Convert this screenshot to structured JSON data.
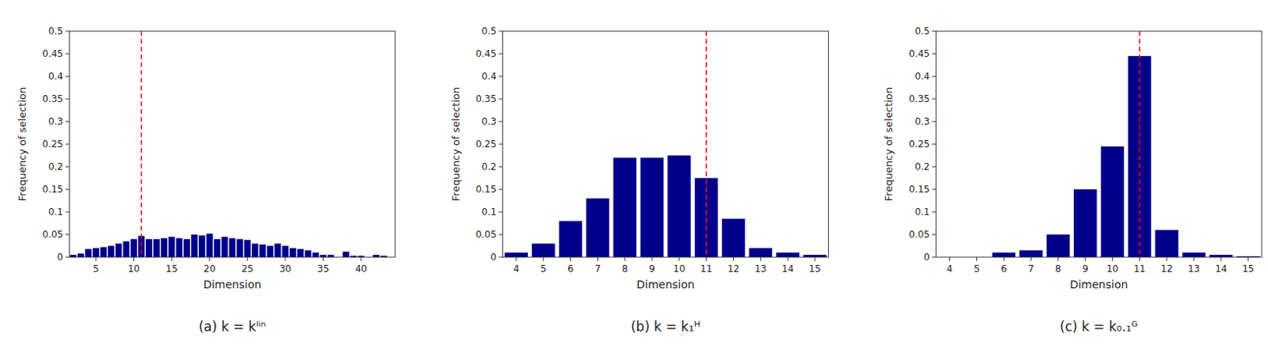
{
  "chart_data": [
    {
      "type": "bar",
      "title": "(a)  k = kˡⁱⁿ",
      "xlabel": "Dimension",
      "ylabel": "Frequency of selection",
      "color": "#00008B",
      "x": [
        2,
        3,
        4,
        5,
        6,
        7,
        8,
        9,
        10,
        11,
        12,
        13,
        14,
        15,
        16,
        17,
        18,
        19,
        20,
        21,
        22,
        23,
        24,
        25,
        26,
        27,
        28,
        29,
        30,
        31,
        32,
        33,
        34,
        35,
        36,
        37,
        38,
        39,
        40,
        41,
        42,
        43
      ],
      "values": [
        0.005,
        0.008,
        0.018,
        0.02,
        0.022,
        0.025,
        0.03,
        0.035,
        0.04,
        0.047,
        0.04,
        0.04,
        0.042,
        0.045,
        0.042,
        0.04,
        0.05,
        0.048,
        0.052,
        0.04,
        0.045,
        0.042,
        0.04,
        0.038,
        0.03,
        0.028,
        0.025,
        0.03,
        0.025,
        0.02,
        0.018,
        0.015,
        0.01,
        0.005,
        0.005,
        0.0,
        0.012,
        0.003,
        0.003,
        0.0,
        0.005,
        0.003
      ],
      "xlim": [
        1.5,
        44.5
      ],
      "xticks": [
        5,
        10,
        15,
        20,
        25,
        30,
        35,
        40
      ],
      "ylim": [
        0,
        0.5
      ],
      "yticks": [
        0,
        0.05,
        0.1,
        0.15,
        0.2,
        0.25,
        0.3,
        0.35,
        0.4,
        0.45,
        0.5
      ],
      "reference_line": {
        "x": 11,
        "color": "red",
        "line_style": "dashed"
      },
      "grid": false
    },
    {
      "type": "bar",
      "title": "(b)  k = k₁ᴴ",
      "xlabel": "Dimension",
      "ylabel": "Frequency of selection",
      "color": "#00008B",
      "x": [
        4,
        5,
        6,
        7,
        8,
        9,
        10,
        11,
        12,
        13,
        14,
        15
      ],
      "values": [
        0.01,
        0.03,
        0.08,
        0.13,
        0.22,
        0.22,
        0.225,
        0.175,
        0.085,
        0.02,
        0.01,
        0.005
      ],
      "xlim": [
        3.5,
        15.5
      ],
      "xticks": [
        4,
        5,
        6,
        7,
        8,
        9,
        10,
        11,
        12,
        13,
        14,
        15
      ],
      "ylim": [
        0,
        0.5
      ],
      "yticks": [
        0,
        0.05,
        0.1,
        0.15,
        0.2,
        0.25,
        0.3,
        0.35,
        0.4,
        0.45,
        0.5
      ],
      "reference_line": {
        "x": 11,
        "color": "red",
        "line_style": "dashed"
      },
      "grid": false
    },
    {
      "type": "bar",
      "title": "(c)  k = k₀.₁ᴳ",
      "xlabel": "Dimension",
      "ylabel": "Frequency of selection",
      "color": "#00008B",
      "x": [
        4,
        5,
        6,
        7,
        8,
        9,
        10,
        11,
        12,
        13,
        14,
        15
      ],
      "values": [
        0.0,
        0.0,
        0.01,
        0.015,
        0.05,
        0.15,
        0.245,
        0.445,
        0.06,
        0.01,
        0.005,
        0.002
      ],
      "xlim": [
        3.5,
        15.5
      ],
      "xticks": [
        4,
        5,
        6,
        7,
        8,
        9,
        10,
        11,
        12,
        13,
        14,
        15
      ],
      "ylim": [
        0,
        0.5
      ],
      "yticks": [
        0,
        0.05,
        0.1,
        0.15,
        0.2,
        0.25,
        0.3,
        0.35,
        0.4,
        0.45,
        0.5
      ],
      "reference_line": {
        "x": 11,
        "color": "red",
        "line_style": "dashed"
      },
      "grid": false
    }
  ]
}
